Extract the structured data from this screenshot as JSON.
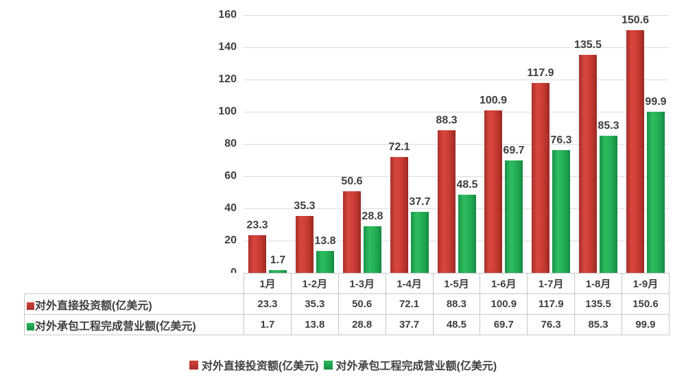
{
  "chart_data": {
    "type": "bar",
    "title": "",
    "categories": [
      "1月",
      "1-2月",
      "1-3月",
      "1-4月",
      "1-5月",
      "1-6月",
      "1-7月",
      "1-8月",
      "1-9月"
    ],
    "series": [
      {
        "name": "对外直接投资额(亿美元)",
        "color": "#cc3b34",
        "values": [
          23.3,
          35.3,
          50.6,
          72.1,
          88.3,
          100.9,
          117.9,
          135.5,
          150.6
        ]
      },
      {
        "name": "对外承包工程完成营业额(亿美元)",
        "color": "#22a950",
        "values": [
          1.7,
          13.8,
          28.8,
          37.7,
          48.5,
          69.7,
          76.3,
          85.3,
          99.9
        ]
      }
    ],
    "y_ticks": [
      0,
      20,
      40,
      60,
      80,
      100,
      120,
      140,
      160
    ],
    "ylim": [
      0,
      160
    ],
    "xlabel": "",
    "ylabel": "",
    "grid": true,
    "gridline_color": "#dcdcdc",
    "legend_position": "bottom",
    "data_table_shown": true,
    "data_label_color": "#3f3f3f"
  }
}
